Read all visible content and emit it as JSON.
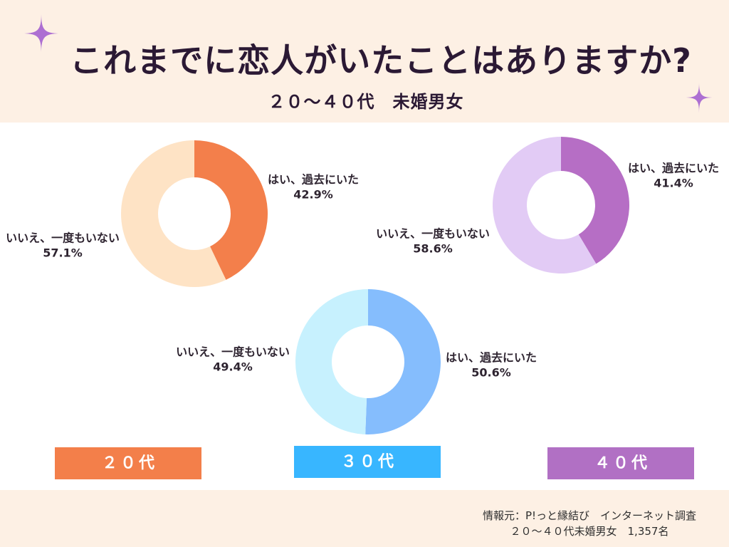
{
  "header": {
    "title": "これまでに恋人がいたことはありますか?",
    "subtitle": "２０～４０代　未婚男女"
  },
  "chart_data": [
    {
      "type": "pie",
      "style": "donut",
      "title": "２０代",
      "categories": [
        "はい、過去にいた",
        "いいえ、一度もいない"
      ],
      "values": [
        42.9,
        57.1
      ],
      "value_suffix": "%",
      "colors": [
        "#f37f4b",
        "#fee3c5"
      ],
      "title_box_color": "#f37f4a"
    },
    {
      "type": "pie",
      "style": "donut",
      "title": "３０代",
      "categories": [
        "はい、過去にいた",
        "いいえ、一度もいない"
      ],
      "values": [
        50.6,
        49.4
      ],
      "value_suffix": "%",
      "colors": [
        "#85bdfd",
        "#c7f1fe"
      ],
      "title_box_color": "#38b6ff"
    },
    {
      "type": "pie",
      "style": "donut",
      "title": "４０代",
      "categories": [
        "はい、過去にいた",
        "いいえ、一度もいない"
      ],
      "values": [
        41.4,
        58.6
      ],
      "value_suffix": "%",
      "colors": [
        "#b66ec5",
        "#e2cbf5"
      ],
      "title_box_color": "#b170c4"
    }
  ],
  "footer": {
    "source": "情報元：P!っと縁結び　インターネット調査",
    "sample": "２０～４０代未婚男女　1,357名"
  },
  "decoration": {
    "sparkle_icon": "sparkle-icon",
    "sparkle_color": "#ad6fd2"
  },
  "theme": {
    "band_color": "#fdf0e4",
    "text_color": "#2b1934"
  }
}
